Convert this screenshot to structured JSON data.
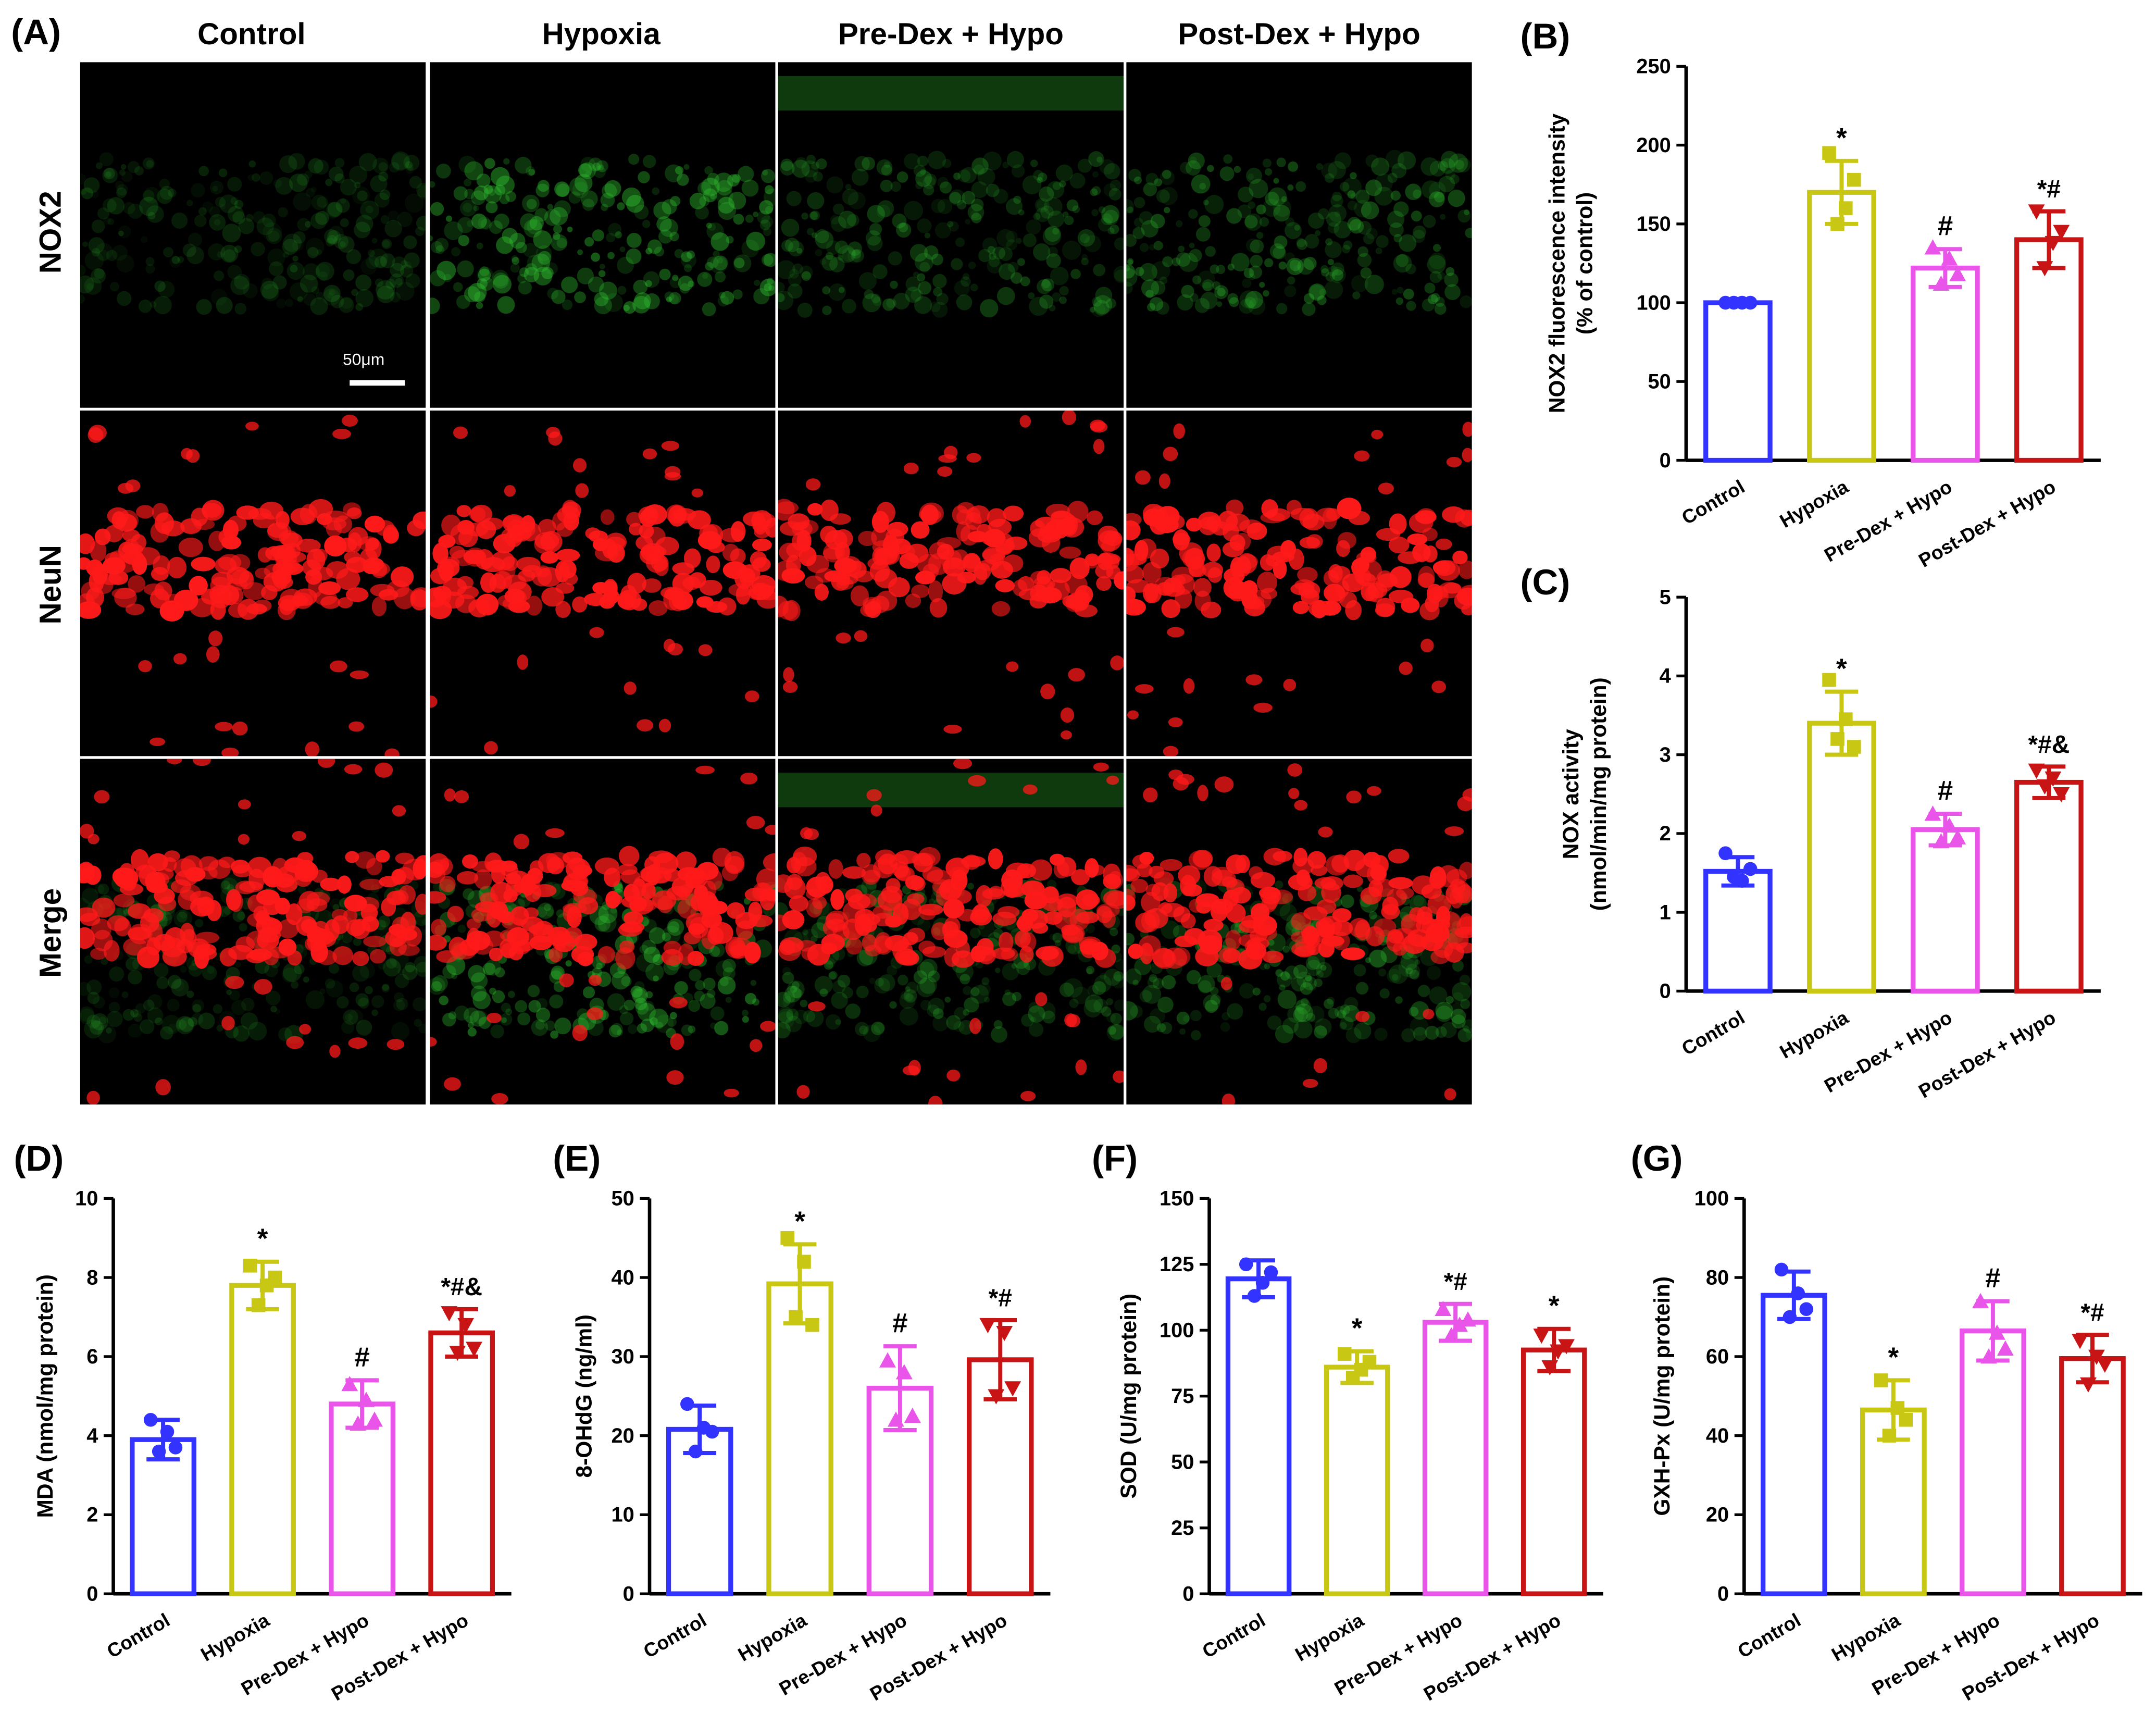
{
  "figure": {
    "panel_a": {
      "label": "(A)",
      "columns": [
        "Control",
        "Hypoxia",
        "Pre-Dex + Hypo",
        "Post-Dex + Hypo"
      ],
      "rows": [
        "NOX2",
        "NeuN",
        "Merge"
      ],
      "scale_bar": "50μm",
      "colors": {
        "nox2": "#2fbf2f",
        "neun": "#ff1a1a"
      }
    }
  },
  "chart_data": [
    {
      "panel": "(B)",
      "type": "bar",
      "categories": [
        "Control",
        "Hypoxia",
        "Pre-Dex + Hypo",
        "Post-Dex + Hypo"
      ],
      "values": [
        100,
        170,
        122,
        140
      ],
      "sd": [
        1,
        20,
        12,
        18
      ],
      "points": [
        [
          100,
          100,
          100,
          100
        ],
        [
          195,
          150,
          160,
          178
        ],
        [
          135,
          112,
          128,
          118
        ],
        [
          158,
          122,
          138,
          145
        ]
      ],
      "annotations": [
        "",
        "*",
        "#",
        "*#"
      ],
      "ylabel": "NOX2 fluorescence intensity (% of control)",
      "ylim": [
        0,
        250
      ],
      "yticks": [
        0,
        50,
        100,
        150,
        200,
        250
      ],
      "colors": [
        "#3333ff",
        "#c8c814",
        "#e855e8",
        "#c81414"
      ]
    },
    {
      "panel": "(C)",
      "type": "bar",
      "categories": [
        "Control",
        "Hypoxia",
        "Pre-Dex + Hypo",
        "Post-Dex + Hypo"
      ],
      "values": [
        1.52,
        3.4,
        2.05,
        2.65
      ],
      "sd": [
        0.18,
        0.4,
        0.2,
        0.2
      ],
      "points": [
        [
          1.75,
          1.45,
          1.4,
          1.55
        ],
        [
          3.95,
          3.2,
          3.45,
          3.1
        ],
        [
          2.25,
          1.9,
          2.1,
          1.95
        ],
        [
          2.8,
          2.6,
          2.7,
          2.5
        ]
      ],
      "annotations": [
        "",
        "*",
        "#",
        "*#&"
      ],
      "ylabel": "NOX activity (nmol/min/mg protein)",
      "ylim": [
        0,
        5
      ],
      "yticks": [
        0,
        1,
        2,
        3,
        4,
        5
      ],
      "colors": [
        "#3333ff",
        "#c8c814",
        "#e855e8",
        "#c81414"
      ]
    },
    {
      "panel": "(D)",
      "type": "bar",
      "categories": [
        "Control",
        "Hypoxia",
        "Pre-Dex + Hypo",
        "Post-Dex + Hypo"
      ],
      "values": [
        3.9,
        7.8,
        4.8,
        6.6
      ],
      "sd": [
        0.5,
        0.6,
        0.6,
        0.6
      ],
      "points": [
        [
          4.4,
          3.6,
          4.1,
          3.7
        ],
        [
          8.3,
          7.3,
          7.8,
          8.0
        ],
        [
          5.3,
          4.3,
          4.9,
          4.4
        ],
        [
          7.1,
          6.1,
          6.8,
          6.2
        ]
      ],
      "annotations": [
        "",
        "*",
        "#",
        "*#&"
      ],
      "ylabel": "MDA (nmol/mg protein)",
      "ylim": [
        0,
        10
      ],
      "yticks": [
        0,
        2,
        4,
        6,
        8,
        10
      ],
      "colors": [
        "#3333ff",
        "#c8c814",
        "#e855e8",
        "#c81414"
      ]
    },
    {
      "panel": "(E)",
      "type": "bar",
      "categories": [
        "Control",
        "Hypoxia",
        "Pre-Dex + Hypo",
        "Post-Dex + Hypo"
      ],
      "values": [
        20.8,
        39.2,
        26.0,
        29.6
      ],
      "sd": [
        3.0,
        5.0,
        5.3,
        5.0
      ],
      "points": [
        [
          24.0,
          18.0,
          21.0,
          20.5
        ],
        [
          45.0,
          35.0,
          42.0,
          34.0
        ],
        [
          29.5,
          22.0,
          28.0,
          22.5
        ],
        [
          34.0,
          25.0,
          33.0,
          26.0
        ]
      ],
      "annotations": [
        "",
        "*",
        "#",
        "*#"
      ],
      "ylabel": "8-OHdG (ng/ml)",
      "ylim": [
        0,
        50
      ],
      "yticks": [
        0,
        10,
        20,
        30,
        40,
        50
      ],
      "colors": [
        "#3333ff",
        "#c8c814",
        "#e855e8",
        "#c81414"
      ]
    },
    {
      "panel": "(F)",
      "type": "bar",
      "categories": [
        "Control",
        "Hypoxia",
        "Pre-Dex + Hypo",
        "Post-Dex + Hypo"
      ],
      "values": [
        119.5,
        86,
        103,
        92.5
      ],
      "sd": [
        7,
        6,
        7,
        8
      ],
      "points": [
        [
          125,
          113,
          118,
          122
        ],
        [
          91,
          82,
          85,
          88
        ],
        [
          108,
          98,
          102,
          104
        ],
        [
          98,
          86,
          92,
          94
        ]
      ],
      "annotations": [
        "",
        "*",
        "*#",
        "*"
      ],
      "ylabel": "SOD (U/mg protein)",
      "ylim": [
        0,
        150
      ],
      "yticks": [
        0,
        25,
        50,
        75,
        100,
        125,
        150
      ],
      "colors": [
        "#3333ff",
        "#c8c814",
        "#e855e8",
        "#c81414"
      ]
    },
    {
      "panel": "(G)",
      "type": "bar",
      "categories": [
        "Control",
        "Hypoxia",
        "Pre-Dex + Hypo",
        "Post-Dex + Hypo"
      ],
      "values": [
        75.5,
        46.5,
        66.5,
        59.5
      ],
      "sd": [
        6,
        7.5,
        7.5,
        6
      ],
      "points": [
        [
          82,
          70,
          76,
          72
        ],
        [
          54,
          40,
          47,
          44
        ],
        [
          74,
          60,
          66,
          62
        ],
        [
          64,
          53,
          60,
          58
        ]
      ],
      "annotations": [
        "",
        "*",
        "#",
        "*#"
      ],
      "ylabel": "GXH-Px (U/mg protein)",
      "ylim": [
        0,
        100
      ],
      "yticks": [
        0,
        20,
        40,
        60,
        80,
        100
      ],
      "colors": [
        "#3333ff",
        "#c8c814",
        "#e855e8",
        "#c81414"
      ]
    }
  ]
}
